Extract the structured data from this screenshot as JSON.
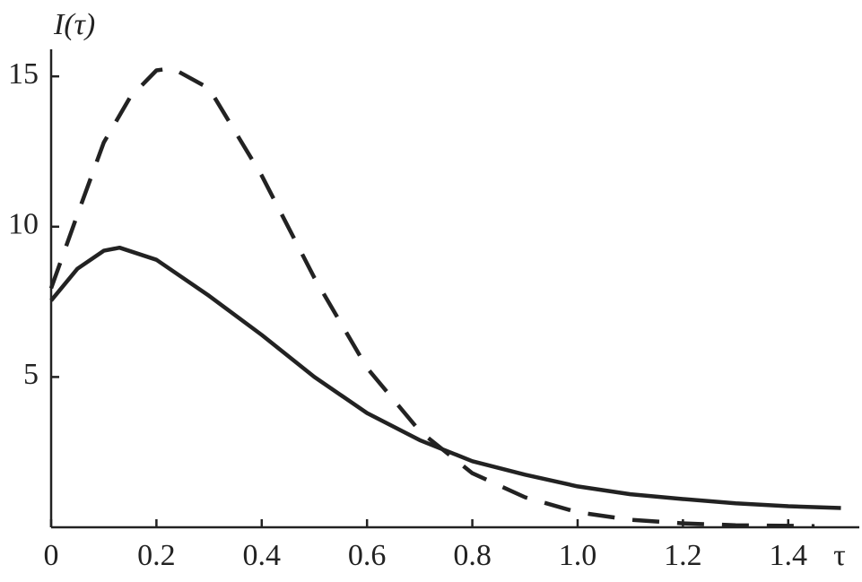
{
  "chart_data": {
    "type": "line",
    "y_label": "I(τ)",
    "x_label": "τ",
    "xlim": [
      0,
      1.535
    ],
    "ylim": [
      0,
      15.9
    ],
    "xticks": [
      0,
      0.2,
      0.4,
      0.6,
      0.8,
      {
        "value": 1,
        "label": "1.0"
      },
      1.2,
      1.4
    ],
    "yticks": [
      5,
      10,
      15
    ],
    "grid": false,
    "series": [
      {
        "color": "#222222",
        "style": "solid",
        "x": [
          0,
          0.05,
          0.1,
          0.13,
          0.2,
          0.3,
          0.4,
          0.5,
          0.6,
          0.7,
          0.8,
          0.9,
          1.0,
          1.1,
          1.2,
          1.3,
          1.4,
          1.5
        ],
        "values": [
          7.54,
          8.6,
          9.2,
          9.3,
          8.9,
          7.7,
          6.4,
          5.0,
          3.8,
          2.9,
          2.2,
          1.75,
          1.36,
          1.1,
          0.94,
          0.8,
          0.7,
          0.64
        ]
      },
      {
        "color": "#222222",
        "style": "dashed",
        "x": [
          0,
          0.05,
          0.1,
          0.15,
          0.2,
          0.23,
          0.3,
          0.4,
          0.5,
          0.6,
          0.7,
          0.8,
          0.9,
          1.0,
          1.1,
          1.2,
          1.3,
          1.45
        ],
        "values": [
          7.95,
          10.4,
          12.8,
          14.3,
          15.2,
          15.27,
          14.6,
          11.7,
          8.3,
          5.3,
          3.2,
          1.8,
          1.0,
          0.5,
          0.25,
          0.13,
          0.07,
          0.04
        ]
      }
    ]
  }
}
